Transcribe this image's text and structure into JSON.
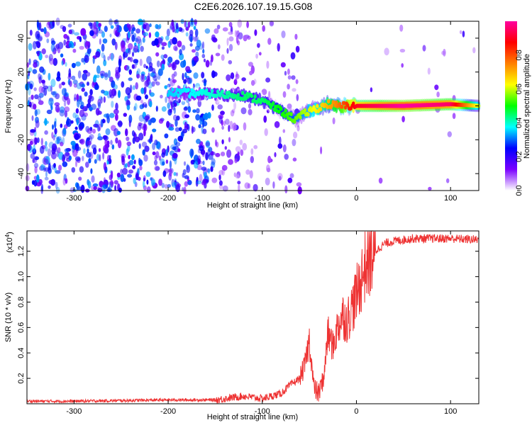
{
  "title": "C2E6.2026.107.19.15.G08",
  "chart_data": [
    {
      "type": "heatmap",
      "name": "spectrogram",
      "xlabel": "Height of straight line (km)",
      "ylabel": "Frequency (Hz)",
      "xlim": [
        -350,
        130
      ],
      "ylim": [
        -50,
        50
      ],
      "xticks": [
        -300,
        -200,
        -100,
        0,
        100
      ],
      "yticks": [
        -40,
        -20,
        0,
        20,
        40
      ],
      "xtick_labels": [
        "-300",
        "-200",
        "-100",
        "0",
        "100"
      ],
      "ytick_labels": [
        "-40",
        "-20",
        "0",
        "20",
        "40"
      ],
      "colorbar": {
        "label": "Normalized spectral amplitude",
        "range": [
          0,
          1
        ],
        "ticks": [
          0.0,
          0.2,
          0.4,
          0.6,
          0.8
        ],
        "tick_labels": [
          "0.0",
          "0.2",
          "0.4",
          "0.6",
          "0.8"
        ],
        "colors": [
          "#ffffff",
          "#7a00ff",
          "#0000ff",
          "#00ffff",
          "#00ff00",
          "#ffff00",
          "#ff7f00",
          "#ff0000",
          "#ff00a0"
        ]
      },
      "ridge": {
        "description": "dominant frequency track",
        "x": [
          -200,
          -150,
          -120,
          -100,
          -80,
          -65,
          -50,
          -30,
          -20,
          0,
          50,
          100,
          130
        ],
        "y": [
          8,
          7,
          6,
          3,
          -3,
          -8,
          -3,
          1,
          0,
          0,
          0,
          1,
          0
        ],
        "amplitude": [
          0.35,
          0.4,
          0.45,
          0.45,
          0.5,
          0.55,
          0.6,
          0.7,
          0.75,
          0.9,
          1.0,
          0.95,
          0.6
        ]
      },
      "noise_region_x": [
        -350,
        -150
      ]
    },
    {
      "type": "line",
      "name": "snr",
      "xlabel": "Height of straight line (km)",
      "ylabel": "SNR (10 * v/v)",
      "scale_label": "(x10",
      "scale_exponent": "4",
      "xlim": [
        -350,
        130
      ],
      "ylim": [
        0,
        1.36
      ],
      "xticks": [
        -300,
        -200,
        -100,
        0,
        100
      ],
      "yticks": [
        0.2,
        0.4,
        0.6,
        0.8,
        1.0,
        1.2
      ],
      "xtick_labels": [
        "-300",
        "-200",
        "-100",
        "0",
        "100"
      ],
      "ytick_labels": [
        "0.2",
        "0.4",
        "0.6",
        "0.8",
        "1.0",
        "1.2"
      ],
      "color": "#ee3333",
      "series": [
        {
          "name": "SNR",
          "x": [
            -350,
            -300,
            -250,
            -200,
            -150,
            -120,
            -100,
            -80,
            -70,
            -60,
            -55,
            -50,
            -45,
            -40,
            -35,
            -30,
            -25,
            -20,
            -15,
            -10,
            -5,
            0,
            5,
            10,
            20,
            30,
            40,
            60,
            80,
            100,
            130
          ],
          "y": [
            0.02,
            0.02,
            0.025,
            0.03,
            0.03,
            0.06,
            0.04,
            0.08,
            0.15,
            0.2,
            0.3,
            0.5,
            0.12,
            0.08,
            0.2,
            0.55,
            0.45,
            0.6,
            0.7,
            0.65,
            0.75,
            0.85,
            0.98,
            1.1,
            1.2,
            1.26,
            1.28,
            1.3,
            1.3,
            1.3,
            1.29
          ]
        }
      ]
    }
  ]
}
